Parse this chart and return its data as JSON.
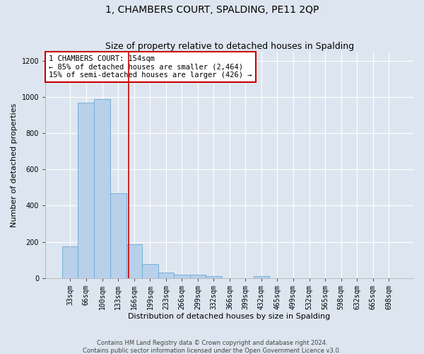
{
  "title": "1, CHAMBERS COURT, SPALDING, PE11 2QP",
  "subtitle": "Size of property relative to detached houses in Spalding",
  "xlabel": "Distribution of detached houses by size in Spalding",
  "ylabel": "Number of detached properties",
  "footer_line1": "Contains HM Land Registry data © Crown copyright and database right 2024.",
  "footer_line2": "Contains public sector information licensed under the Open Government Licence v3.0.",
  "bin_labels": [
    "33sqm",
    "66sqm",
    "100sqm",
    "133sqm",
    "166sqm",
    "199sqm",
    "233sqm",
    "266sqm",
    "299sqm",
    "332sqm",
    "366sqm",
    "399sqm",
    "432sqm",
    "465sqm",
    "499sqm",
    "532sqm",
    "565sqm",
    "598sqm",
    "632sqm",
    "665sqm",
    "698sqm"
  ],
  "bin_edges": [
    16.5,
    49.5,
    82.5,
    116.5,
    149.5,
    182.5,
    215.5,
    248.5,
    281.5,
    314.5,
    347.5,
    380.5,
    413.5,
    446.5,
    479.5,
    512.5,
    545.5,
    578.5,
    611.5,
    644.5,
    677.5,
    710.5
  ],
  "values": [
    175,
    970,
    990,
    470,
    185,
    75,
    30,
    20,
    20,
    10,
    0,
    0,
    10,
    0,
    0,
    0,
    0,
    0,
    0,
    0,
    0
  ],
  "bar_color": "#b8d0ea",
  "bar_edge_color": "#6aaad4",
  "red_line_x": 154,
  "red_line_color": "#cc0000",
  "ylim": [
    0,
    1250
  ],
  "yticks": [
    0,
    200,
    400,
    600,
    800,
    1000,
    1200
  ],
  "annotation_title": "1 CHAMBERS COURT: 154sqm",
  "annotation_line1": "← 85% of detached houses are smaller (2,464)",
  "annotation_line2": "15% of semi-detached houses are larger (426) →",
  "annotation_box_color": "#ffffff",
  "annotation_box_edge": "#cc0000",
  "background_color": "#dde6f0",
  "plot_bg_color": "#dde6f0",
  "grid_color": "#ffffff",
  "title_fontsize": 10,
  "subtitle_fontsize": 9,
  "axis_label_fontsize": 8,
  "tick_fontsize": 7,
  "annotation_fontsize": 7.5,
  "footer_fontsize": 6
}
